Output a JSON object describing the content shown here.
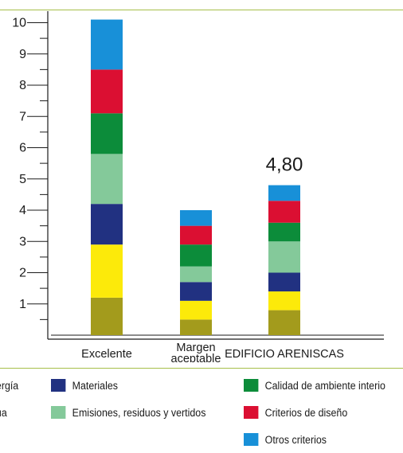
{
  "chart_data": {
    "type": "bar",
    "stacked": true,
    "categories": [
      [
        "Excelente"
      ],
      [
        "Margen",
        "aceptable"
      ],
      [
        "EDIFICIO ARENISCAS"
      ]
    ],
    "ylim": [
      0,
      10.5
    ],
    "yticks": [
      1,
      2,
      3,
      4,
      5,
      6,
      7,
      8,
      9,
      10
    ],
    "grid": false,
    "legend_position": "bottom",
    "annotations": [
      {
        "category_index": 2,
        "text": "4,80"
      }
    ],
    "series": [
      {
        "name": "Energía",
        "color": "#a39b1c",
        "values": [
          1.2,
          0.5,
          0.8
        ]
      },
      {
        "name": "Agua",
        "color": "#fcea0a",
        "values": [
          1.7,
          0.6,
          0.6
        ]
      },
      {
        "name": "Materiales",
        "color": "#213181",
        "values": [
          1.3,
          0.6,
          0.6
        ]
      },
      {
        "name": "Emisiones, residuos y vertidos",
        "color": "#84c99a",
        "values": [
          1.6,
          0.5,
          1.0
        ]
      },
      {
        "name": "Calidad de ambiente interior",
        "color": "#0c8c3a",
        "values": [
          1.3,
          0.7,
          0.6
        ]
      },
      {
        "name": "Criterios de diseño",
        "color": "#db0f32",
        "values": [
          1.4,
          0.6,
          0.7
        ]
      },
      {
        "name": "Otros criterios",
        "color": "#1890d8",
        "values": [
          1.6,
          0.5,
          0.5
        ]
      }
    ]
  },
  "legend": [
    {
      "name": "Energía",
      "label": "nergía",
      "color": "#a39b1c"
    },
    {
      "name": "Agua",
      "label": "gua",
      "color": "#fcea0a"
    },
    {
      "name": "Materiales",
      "label": "Materiales",
      "color": "#213181"
    },
    {
      "name": "Emisiones, residuos y vertidos",
      "label": "Emisiones, residuos y vertidos",
      "color": "#84c99a"
    },
    {
      "name": "Calidad de ambiente interior",
      "label": "Calidad de ambiente interio",
      "color": "#0c8c3a"
    },
    {
      "name": "Criterios de diseño",
      "label": "Criterios de diseño",
      "color": "#db0f32"
    },
    {
      "name": "Otros criterios",
      "label": "Otros criterios",
      "color": "#1890d8"
    }
  ]
}
